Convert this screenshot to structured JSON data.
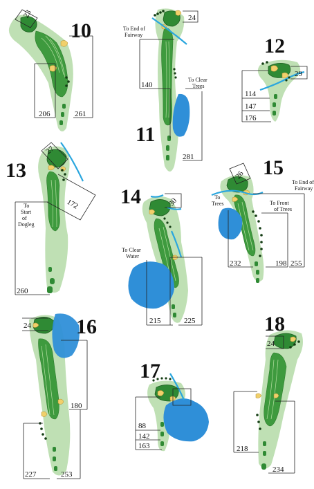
{
  "holes": [
    {
      "number": "10",
      "yardages": [
        "206",
        "261"
      ],
      "green_depth": "23",
      "notes": []
    },
    {
      "number": "11",
      "yardages": [
        "140",
        "281"
      ],
      "green_depth": "24",
      "notes": [
        "To End of Fairway",
        "To Clear Trees"
      ]
    },
    {
      "number": "12",
      "yardages": [
        "114",
        "147",
        "176"
      ],
      "green_depth": "29",
      "notes": []
    },
    {
      "number": "13",
      "yardages": [
        "172",
        "260"
      ],
      "green_depth": "27",
      "notes": [
        "To Start of Dogleg"
      ]
    },
    {
      "number": "14",
      "yardages": [
        "215",
        "225"
      ],
      "green_depth": "30",
      "notes": [
        "To Clear Water"
      ]
    },
    {
      "number": "15",
      "yardages": [
        "232",
        "198",
        "255"
      ],
      "green_depth": "26",
      "notes": [
        "To Trees",
        "To Front of Trees",
        "To End of Fairway"
      ]
    },
    {
      "number": "16",
      "yardages": [
        "180",
        "227",
        "253"
      ],
      "green_depth": "24",
      "notes": []
    },
    {
      "number": "17",
      "yardages": [
        "88",
        "142",
        "163"
      ],
      "green_depth": "",
      "notes": []
    },
    {
      "number": "18",
      "yardages": [
        "218",
        "234"
      ],
      "green_depth": "24",
      "notes": []
    }
  ],
  "colors": {
    "rough": "#bfe0b4",
    "fairway": "#3e9a3e",
    "green": "#2f8a34",
    "sand": "#f1d06b",
    "water": "#2f8fd8",
    "trees": "#143d14"
  }
}
